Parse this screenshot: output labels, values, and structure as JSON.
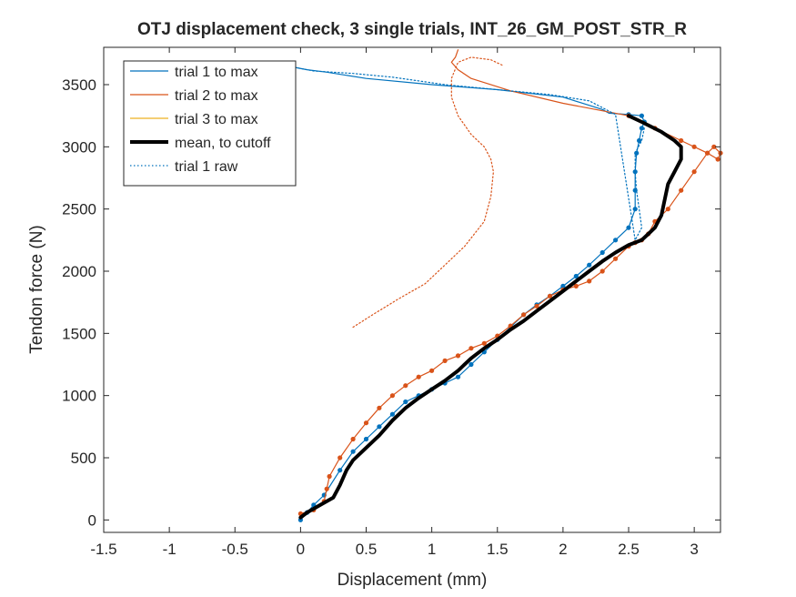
{
  "chart_data": {
    "type": "line",
    "title": "OTJ displacement check, 3 single trials, INT_26_GM_POST_STR_R",
    "xlabel": "Displacement (mm)",
    "ylabel": "Tendon force (N)",
    "xlim": [
      -1.5,
      3.2
    ],
    "ylim": [
      -100,
      3800
    ],
    "xticks": [
      -1.5,
      -1,
      -0.5,
      0,
      0.5,
      1,
      1.5,
      2,
      2.5,
      3
    ],
    "xtick_labels": [
      "-1.5",
      "-1",
      "-0.5",
      "0",
      "0.5",
      "1",
      "1.5",
      "2",
      "2.5",
      "3"
    ],
    "yticks": [
      0,
      500,
      1000,
      1500,
      2000,
      2500,
      3000,
      3500
    ],
    "ytick_labels": [
      "0",
      "500",
      "1000",
      "1500",
      "2000",
      "2500",
      "3000",
      "3500"
    ],
    "grid": false,
    "legend_position": "top-left",
    "colors": {
      "trial1": "#0072bd",
      "trial2": "#d95319",
      "trial3": "#edb120",
      "mean": "#000000",
      "axis": "#262626"
    },
    "series": [
      {
        "name": "trial 1 to max",
        "color": "#0072bd",
        "style": "solid-markers",
        "x": [
          0.0,
          0.05,
          0.1,
          0.18,
          0.3,
          0.4,
          0.5,
          0.6,
          0.7,
          0.8,
          0.9,
          1.0,
          1.1,
          1.2,
          1.3,
          1.4,
          1.5,
          1.6,
          1.7,
          1.8,
          1.9,
          2.0,
          2.1,
          2.2,
          2.3,
          2.4,
          2.5,
          2.55,
          2.55,
          2.55,
          2.56,
          2.58,
          2.6,
          2.62,
          2.6,
          2.5,
          2.35,
          2.3,
          2.0,
          1.5,
          1.0,
          0.5,
          0.2,
          0.05,
          -0.05
        ],
        "y": [
          0,
          60,
          120,
          200,
          400,
          550,
          650,
          750,
          850,
          950,
          1000,
          1050,
          1100,
          1150,
          1250,
          1350,
          1450,
          1550,
          1650,
          1730,
          1800,
          1880,
          1960,
          2050,
          2150,
          2250,
          2350,
          2500,
          2650,
          2800,
          2950,
          3050,
          3150,
          3200,
          3250,
          3260,
          3270,
          3300,
          3400,
          3460,
          3500,
          3550,
          3600,
          3620,
          3640
        ]
      },
      {
        "name": "trial 2 to max",
        "color": "#d95319",
        "style": "solid-markers",
        "x": [
          0.0,
          0.1,
          0.18,
          0.2,
          0.22,
          0.3,
          0.4,
          0.5,
          0.6,
          0.7,
          0.8,
          0.9,
          1.0,
          1.1,
          1.2,
          1.3,
          1.4,
          1.5,
          1.6,
          1.7,
          1.8,
          1.9,
          2.0,
          2.1,
          2.2,
          2.3,
          2.4,
          2.5,
          2.55,
          2.6,
          2.65,
          2.7,
          2.8,
          2.9,
          3.0,
          3.1,
          3.15,
          3.2,
          3.18,
          3.1,
          3.0,
          2.9,
          2.7,
          2.5,
          2.0,
          1.6,
          1.3,
          1.2,
          1.15,
          1.18,
          1.2
        ],
        "y": [
          50,
          80,
          150,
          250,
          350,
          500,
          650,
          780,
          900,
          1000,
          1080,
          1150,
          1200,
          1280,
          1320,
          1380,
          1420,
          1480,
          1560,
          1650,
          1720,
          1800,
          1850,
          1880,
          1920,
          2000,
          2100,
          2200,
          2230,
          2250,
          2300,
          2400,
          2500,
          2650,
          2800,
          2950,
          3000,
          2950,
          2900,
          2950,
          3000,
          3050,
          3150,
          3250,
          3350,
          3450,
          3550,
          3620,
          3680,
          3720,
          3780
        ]
      },
      {
        "name": "trial 3 to max",
        "color": "#edb120",
        "style": "solid",
        "x": [],
        "y": []
      },
      {
        "name": "mean, to cutoff",
        "color": "#000000",
        "style": "thick",
        "x": [
          0.0,
          0.05,
          0.15,
          0.25,
          0.3,
          0.35,
          0.4,
          0.5,
          0.6,
          0.7,
          0.8,
          0.9,
          1.0,
          1.1,
          1.2,
          1.3,
          1.4,
          1.5,
          1.6,
          1.7,
          1.8,
          1.9,
          2.0,
          2.1,
          2.2,
          2.3,
          2.4,
          2.5,
          2.6,
          2.65,
          2.7,
          2.75,
          2.78,
          2.8,
          2.85,
          2.9,
          2.9,
          2.85,
          2.75,
          2.6,
          2.5
        ],
        "y": [
          20,
          60,
          120,
          180,
          280,
          400,
          480,
          580,
          680,
          800,
          900,
          980,
          1050,
          1120,
          1200,
          1300,
          1380,
          1450,
          1530,
          1600,
          1680,
          1760,
          1840,
          1920,
          2000,
          2080,
          2150,
          2210,
          2250,
          2300,
          2350,
          2450,
          2600,
          2700,
          2800,
          2900,
          3000,
          3050,
          3120,
          3200,
          3250
        ]
      },
      {
        "name": "trial 1 raw",
        "color": "#0072bd",
        "style": "dotted",
        "x": [
          2.62,
          2.6,
          2.55,
          2.55,
          2.56,
          2.58,
          2.6,
          2.55,
          2.4,
          2.2,
          1.9,
          1.5,
          1.1,
          0.7,
          0.4,
          0.1,
          -0.05
        ],
        "y": [
          3150,
          3050,
          2950,
          2800,
          2650,
          2500,
          2350,
          2250,
          3260,
          3370,
          3420,
          3460,
          3500,
          3560,
          3590,
          3610,
          3640
        ]
      },
      {
        "name": "",
        "color": "#d95319",
        "style": "dotted",
        "x": [
          0.4,
          0.55,
          0.75,
          0.95,
          1.1,
          1.25,
          1.4,
          1.45,
          1.47,
          1.45,
          1.4,
          1.3,
          1.2,
          1.15,
          1.15,
          1.2,
          1.3,
          1.45,
          1.55
        ],
        "y": [
          1550,
          1650,
          1780,
          1900,
          2050,
          2200,
          2400,
          2600,
          2800,
          2900,
          3000,
          3100,
          3250,
          3400,
          3550,
          3680,
          3720,
          3700,
          3650
        ]
      }
    ]
  }
}
